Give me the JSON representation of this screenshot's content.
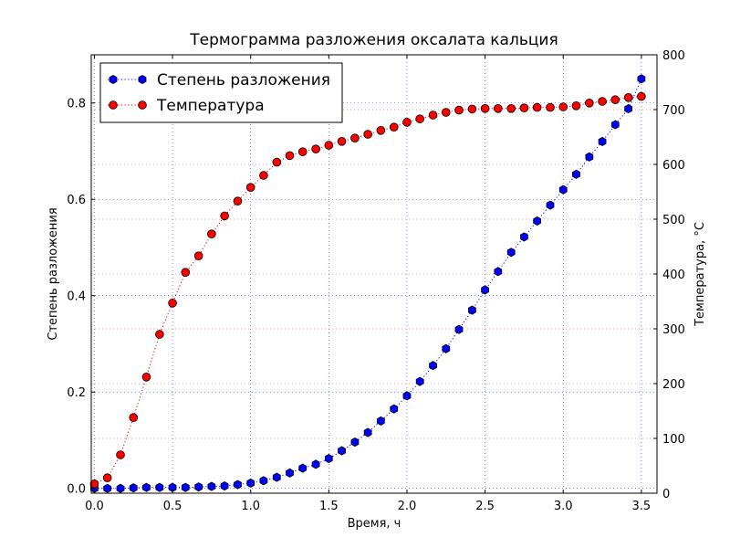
{
  "chart_data": {
    "type": "line",
    "title": "Термограмма разложения оксалата кальция",
    "xlabel": "Время, ч",
    "ylabel": "Степень разложения",
    "y2label": "Температура, °C",
    "xlim": [
      -0.02,
      3.6
    ],
    "ylim": [
      -0.01,
      0.9
    ],
    "y2lim": [
      0,
      800
    ],
    "xticks": [
      "0.0",
      "0.5",
      "1.0",
      "1.5",
      "2.0",
      "2.5",
      "3.0",
      "3.5"
    ],
    "yticks": [
      "0.0",
      "0.2",
      "0.4",
      "0.6",
      "0.8"
    ],
    "y2ticks": [
      "0",
      "100",
      "200",
      "300",
      "400",
      "500",
      "600",
      "700",
      "800"
    ],
    "grid": true,
    "legend_position": "top-left",
    "series": [
      {
        "name": "Степень разложения",
        "axis": "left",
        "color": "#0000ff",
        "marker": "hexagon",
        "linestyle": "dotted",
        "x": [
          0.0,
          0.083,
          0.167,
          0.25,
          0.333,
          0.417,
          0.5,
          0.583,
          0.667,
          0.75,
          0.833,
          0.917,
          1.0,
          1.083,
          1.167,
          1.25,
          1.333,
          1.417,
          1.5,
          1.583,
          1.667,
          1.75,
          1.833,
          1.917,
          2.0,
          2.083,
          2.167,
          2.25,
          2.333,
          2.417,
          2.5,
          2.583,
          2.667,
          2.75,
          2.833,
          2.917,
          3.0,
          3.083,
          3.167,
          3.25,
          3.333,
          3.417,
          3.5
        ],
        "y": [
          0.0,
          0.0,
          0.0,
          0.001,
          0.002,
          0.002,
          0.002,
          0.002,
          0.003,
          0.004,
          0.005,
          0.008,
          0.011,
          0.016,
          0.023,
          0.032,
          0.042,
          0.05,
          0.062,
          0.078,
          0.096,
          0.116,
          0.14,
          0.165,
          0.192,
          0.222,
          0.255,
          0.29,
          0.33,
          0.37,
          0.412,
          0.45,
          0.49,
          0.522,
          0.555,
          0.588,
          0.62,
          0.652,
          0.688,
          0.72,
          0.755,
          0.788,
          0.85
        ]
      },
      {
        "name": "Температура",
        "axis": "right",
        "color": "#ff0000",
        "marker": "circle",
        "linestyle": "dotted",
        "x": [
          0.0,
          0.083,
          0.167,
          0.25,
          0.333,
          0.417,
          0.5,
          0.583,
          0.667,
          0.75,
          0.833,
          0.917,
          1.0,
          1.083,
          1.167,
          1.25,
          1.333,
          1.417,
          1.5,
          1.583,
          1.667,
          1.75,
          1.833,
          1.917,
          2.0,
          2.083,
          2.167,
          2.25,
          2.333,
          2.417,
          2.5,
          2.583,
          2.667,
          2.75,
          2.833,
          2.917,
          3.0,
          3.083,
          3.167,
          3.25,
          3.333,
          3.417,
          3.5
        ],
        "y": [
          17,
          28,
          70,
          138,
          212,
          290,
          347,
          403,
          433,
          473,
          506,
          533,
          558,
          580,
          604,
          616,
          623,
          628,
          635,
          642,
          648,
          655,
          662,
          668,
          677,
          683,
          690,
          695,
          699,
          701,
          702,
          702,
          702,
          703,
          704,
          704,
          705,
          707,
          712,
          715,
          718,
          722,
          724
        ]
      }
    ]
  }
}
